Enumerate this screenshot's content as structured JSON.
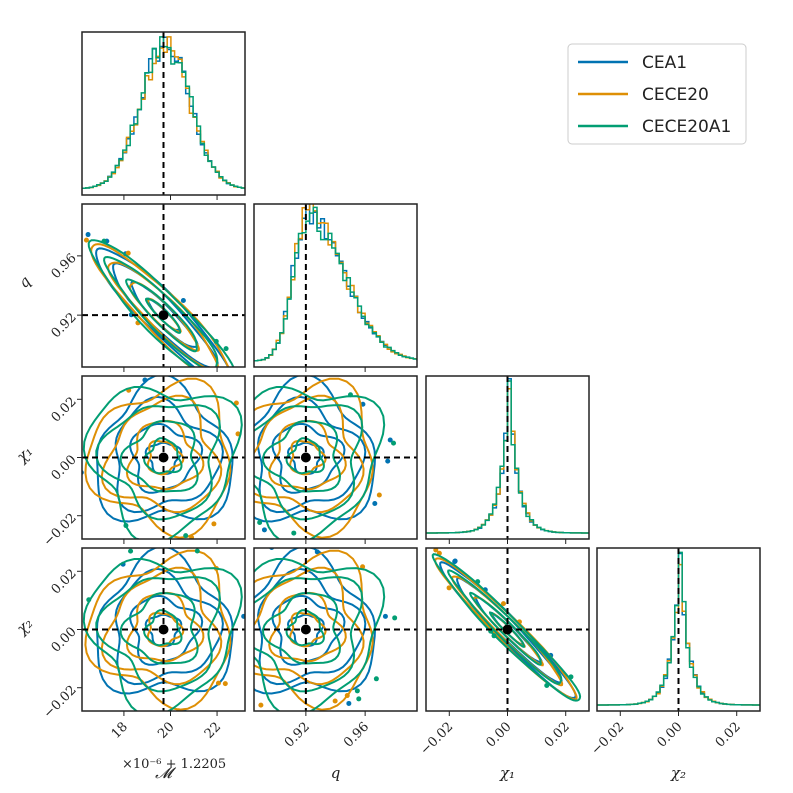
{
  "chart_data": {
    "type": "corner",
    "parameters": [
      {
        "key": "mc",
        "label": "𝓜",
        "range": [
          16.2,
          23.2
        ],
        "ticks": [
          18,
          20,
          22
        ],
        "tick_labels": [
          "18",
          "20",
          "22"
        ],
        "offset_label": "×10⁻⁶ + 1.2205",
        "truth": 19.7
      },
      {
        "key": "q",
        "label": "q",
        "range": [
          0.885,
          0.995
        ],
        "ticks": [
          0.92,
          0.96
        ],
        "tick_labels": [
          "0.92",
          "0.96"
        ],
        "truth": 0.92
      },
      {
        "key": "chi1",
        "label": "χ₁",
        "range": [
          -0.028,
          0.028
        ],
        "ticks": [
          -0.02,
          0.0,
          0.02
        ],
        "tick_labels": [
          "−0.02",
          "0.00",
          "0.02"
        ],
        "truth": 0.0
      },
      {
        "key": "chi2",
        "label": "χ₂",
        "range": [
          -0.028,
          0.028
        ],
        "ticks": [
          -0.02,
          0.0,
          0.02
        ],
        "tick_labels": [
          "−0.02",
          "0.00",
          "0.02"
        ],
        "truth": 0.0
      }
    ],
    "series": [
      {
        "name": "CEA1",
        "color": "#0173b2"
      },
      {
        "name": "CECE20",
        "color": "#de8f05"
      },
      {
        "name": "CECE20A1",
        "color": "#029e73"
      }
    ],
    "truth_marker": {
      "color": "#000000",
      "style": "dashed"
    },
    "correlations": {
      "mc_q": -0.92,
      "chi1_chi2": -0.97
    },
    "legend_position": "top-right"
  }
}
